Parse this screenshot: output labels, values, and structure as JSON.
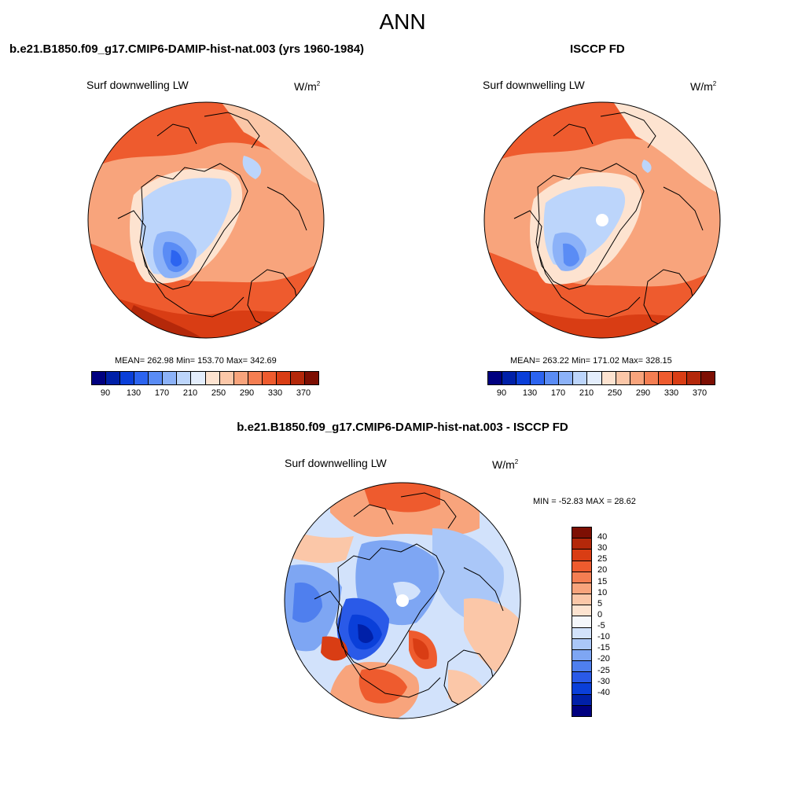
{
  "main_title": "ANN",
  "panels": [
    {
      "case_title": "b.e21.B1850.f09_g17.CMIP6-DAMIP-hist-nat.003 (yrs 1960-1984)",
      "variable": "Surf downwelling LW",
      "unit_base": "W/m",
      "unit_sup": "2",
      "stats": "MEAN= 262.98  Min= 153.70  Max= 342.69"
    },
    {
      "case_title": "ISCCP FD",
      "variable": "Surf downwelling LW",
      "unit_base": "W/m",
      "unit_sup": "2",
      "stats": "MEAN= 263.22  Min= 171.02  Max= 328.15"
    }
  ],
  "diff_panel": {
    "case_title": "b.e21.B1850.f09_g17.CMIP6-DAMIP-hist-nat.003 - ISCCP FD",
    "variable": "Surf downwelling LW",
    "unit_base": "W/m",
    "unit_sup": "2",
    "stats": "MIN = -52.83 MAX =  28.62"
  },
  "abs_colorbar": {
    "colors": [
      "#000080",
      "#0020a8",
      "#0a3fd9",
      "#2c64f0",
      "#5a8cf5",
      "#8cb2f8",
      "#bcd5fb",
      "#e3edfc",
      "#fde3d0",
      "#fbc7a8",
      "#f8a47c",
      "#f47e52",
      "#ee5b2e",
      "#d93d14",
      "#b4280a",
      "#7d0f03"
    ],
    "ticks": [
      "90",
      "130",
      "170",
      "210",
      "250",
      "290",
      "330",
      "370"
    ]
  },
  "diff_colorbar": {
    "colors": [
      "#7d0f03",
      "#b4280a",
      "#d93d14",
      "#ee5b2e",
      "#f47e52",
      "#f8a47c",
      "#fbc7a8",
      "#fde3d0",
      "#f5f7fb",
      "#d2e2fb",
      "#aac7f8",
      "#7ea6f3",
      "#4f7fee",
      "#2a5ae8",
      "#0a3fd9",
      "#0020a8",
      "#000080"
    ],
    "ticks": [
      "40",
      "30",
      "25",
      "20",
      "15",
      "10",
      "5",
      "0",
      "-5",
      "-10",
      "-15",
      "-20",
      "-25",
      "-30",
      "-40"
    ]
  }
}
